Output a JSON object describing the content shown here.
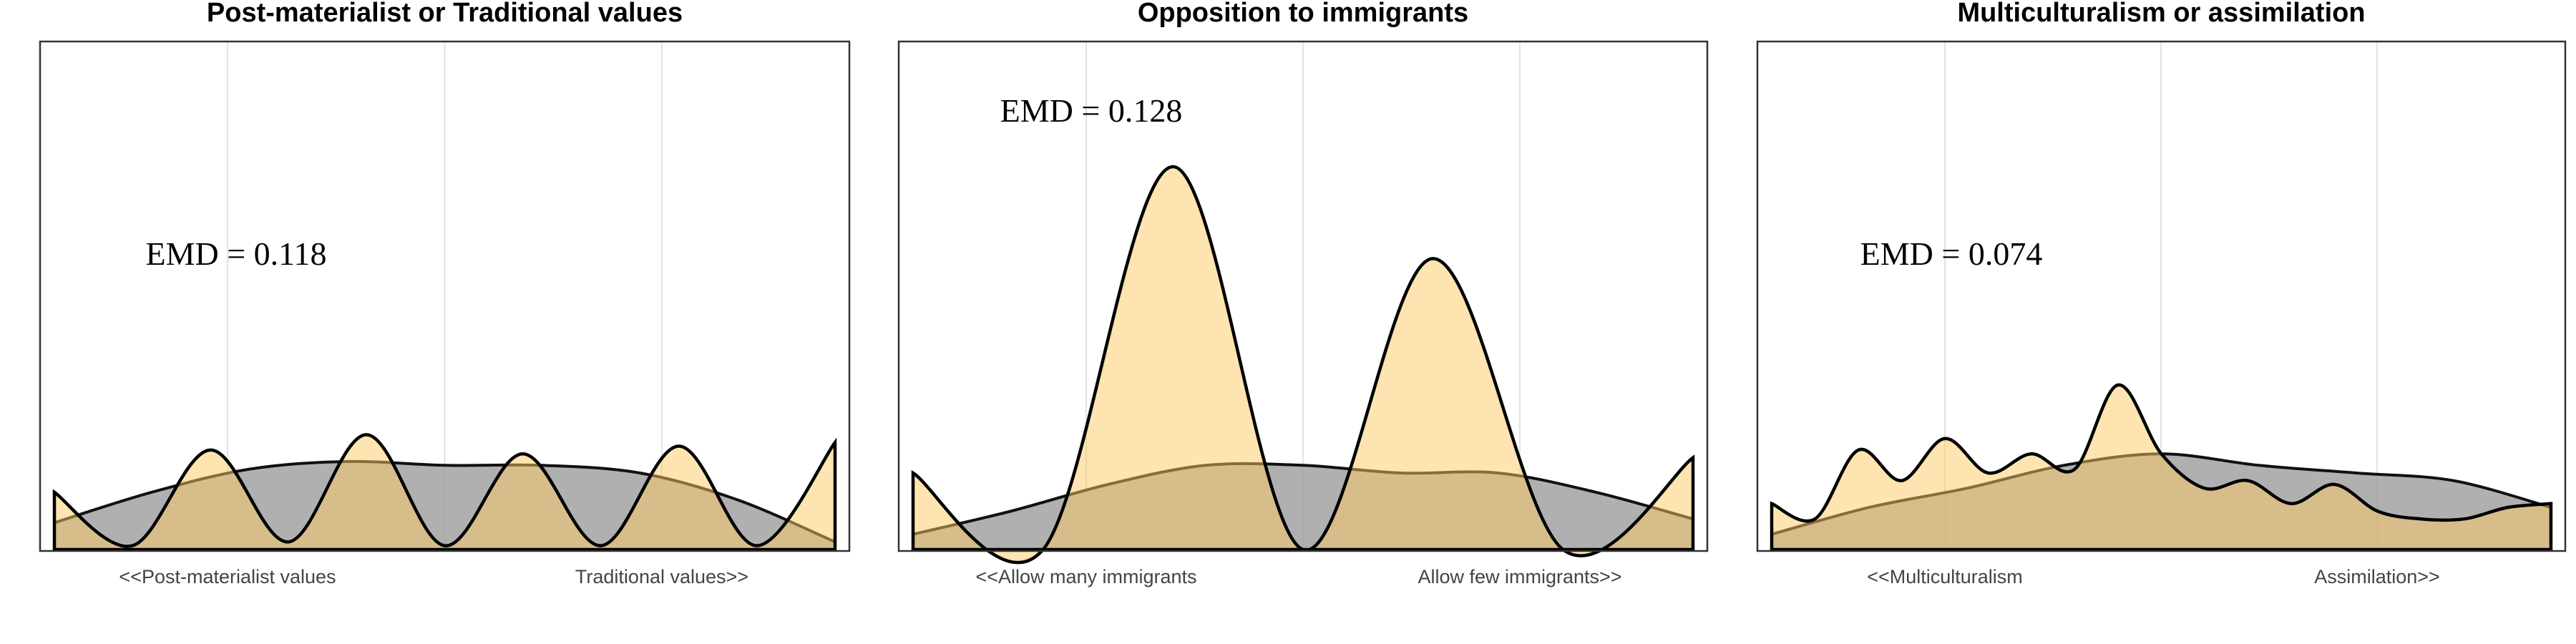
{
  "chart_data": [
    {
      "type": "area",
      "title": "Post-materialist or Traditional values",
      "tick_labels": [
        "<<Post-materialist values",
        "Traditional values>>"
      ],
      "annotation": "EMD = 0.118",
      "colors": {
        "grey": "#9a9a9a",
        "gold": "#fcc962"
      },
      "grid": true,
      "series": [
        {
          "values": [
            0.07,
            0.15,
            0.21,
            0.23,
            0.22,
            0.22,
            0.2,
            0.13,
            0.02
          ]
        },
        {
          "values": [
            0.15,
            0.01,
            0.26,
            0.02,
            0.3,
            0.01,
            0.25,
            0.01,
            0.27,
            0.01,
            0.28
          ]
        }
      ]
    },
    {
      "type": "area",
      "title": "Opposition to immigrants",
      "tick_labels": [
        "<<Allow many immigrants",
        "Allow few immigrants>>"
      ],
      "annotation": "EMD = 0.128",
      "colors": {
        "grey": "#9a9a9a",
        "gold": "#fcc962"
      },
      "grid": true,
      "series": [
        {
          "values": [
            0.04,
            0.1,
            0.17,
            0.22,
            0.22,
            0.2,
            0.2,
            0.15,
            0.08
          ]
        },
        {
          "values": [
            0.2,
            0.0,
            1.0,
            0.0,
            0.76,
            0.0,
            0.24
          ]
        }
      ]
    },
    {
      "type": "area",
      "title": "Multiculturalism  or assimilation",
      "tick_labels": [
        "<<Multiculturalism",
        "Assimilation>>"
      ],
      "annotation": "EMD = 0.074",
      "colors": {
        "grey": "#9a9a9a",
        "gold": "#fcc962"
      },
      "grid": true,
      "series": [
        {
          "values": [
            0.04,
            0.11,
            0.16,
            0.22,
            0.25,
            0.22,
            0.2,
            0.18,
            0.11
          ]
        },
        {
          "values": [
            0.12,
            0.08,
            0.26,
            0.18,
            0.29,
            0.2,
            0.25,
            0.21,
            0.43,
            0.25,
            0.16,
            0.18,
            0.12,
            0.17,
            0.1,
            0.08,
            0.08,
            0.11,
            0.12
          ]
        }
      ]
    }
  ]
}
